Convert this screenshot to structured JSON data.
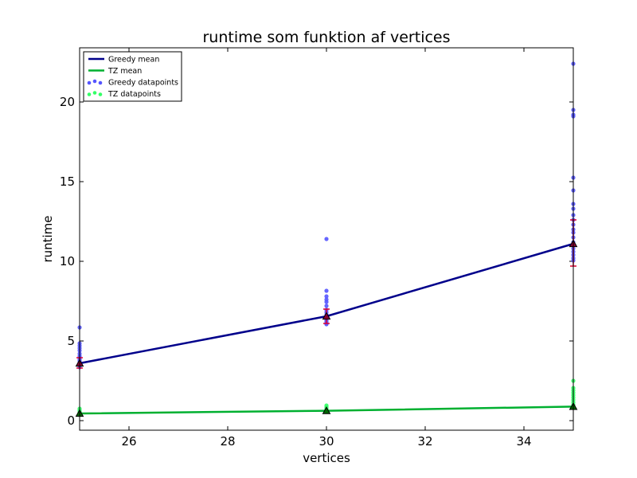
{
  "chart_data": {
    "type": "line",
    "title": "runtime som funktion af vertices",
    "xlabel": "vertices",
    "ylabel": "runtime",
    "xlim": [
      25,
      35
    ],
    "ylim": [
      -0.6,
      23.4
    ],
    "xticks": [
      26,
      28,
      30,
      32,
      34
    ],
    "yticks": [
      0,
      5,
      10,
      15,
      20
    ],
    "legend_position": "top-left",
    "series": [
      {
        "name": "Greedy mean",
        "kind": "line",
        "color": "#00008b",
        "x": [
          25,
          30,
          35
        ],
        "y": [
          3.6,
          6.55,
          11.1
        ]
      },
      {
        "name": "TZ mean",
        "kind": "line",
        "color": "#00b030",
        "x": [
          25,
          30,
          35
        ],
        "y": [
          0.45,
          0.62,
          0.88
        ]
      },
      {
        "name": "Greedy datapoints",
        "kind": "scatter",
        "color": "#5555ff",
        "points": [
          [
            25,
            5.85
          ],
          [
            25,
            4.85
          ],
          [
            25,
            4.7
          ],
          [
            25,
            4.55
          ],
          [
            25,
            4.4
          ],
          [
            25,
            4.2
          ],
          [
            25,
            4.05
          ],
          [
            25,
            3.95
          ],
          [
            25,
            3.85
          ],
          [
            25,
            3.75
          ],
          [
            25,
            3.65
          ],
          [
            25,
            3.55
          ],
          [
            25,
            3.45
          ],
          [
            25,
            3.35
          ],
          [
            30,
            11.4
          ],
          [
            30,
            8.15
          ],
          [
            30,
            7.8
          ],
          [
            30,
            7.6
          ],
          [
            30,
            7.45
          ],
          [
            30,
            7.2
          ],
          [
            30,
            6.95
          ],
          [
            30,
            6.8
          ],
          [
            30,
            6.65
          ],
          [
            30,
            6.5
          ],
          [
            30,
            6.4
          ],
          [
            30,
            6.3
          ],
          [
            30,
            6.2
          ],
          [
            30,
            6.1
          ],
          [
            30,
            6.05
          ],
          [
            35,
            22.4
          ],
          [
            35,
            19.5
          ],
          [
            35,
            19.2
          ],
          [
            35,
            19.1
          ],
          [
            35,
            15.25
          ],
          [
            35,
            14.45
          ],
          [
            35,
            13.6
          ],
          [
            35,
            13.3
          ],
          [
            35,
            12.9
          ],
          [
            35,
            12.6
          ],
          [
            35,
            12.3
          ],
          [
            35,
            12.0
          ],
          [
            35,
            11.8
          ],
          [
            35,
            11.5
          ],
          [
            35,
            11.2
          ],
          [
            35,
            11.0
          ],
          [
            35,
            10.8
          ],
          [
            35,
            10.6
          ],
          [
            35,
            10.4
          ],
          [
            35,
            10.2
          ],
          [
            35,
            10.05
          ]
        ]
      },
      {
        "name": "TZ datapoints",
        "kind": "scatter",
        "color": "#33ff66",
        "points": [
          [
            25,
            0.75
          ],
          [
            25,
            0.65
          ],
          [
            25,
            0.55
          ],
          [
            25,
            0.5
          ],
          [
            25,
            0.45
          ],
          [
            25,
            0.42
          ],
          [
            30,
            0.95
          ],
          [
            30,
            0.85
          ],
          [
            30,
            0.75
          ],
          [
            30,
            0.7
          ],
          [
            30,
            0.65
          ],
          [
            30,
            0.6
          ],
          [
            35,
            2.5
          ],
          [
            35,
            2.05
          ],
          [
            35,
            1.9
          ],
          [
            35,
            1.75
          ],
          [
            35,
            1.6
          ],
          [
            35,
            1.45
          ],
          [
            35,
            1.3
          ],
          [
            35,
            1.15
          ],
          [
            35,
            1.0
          ],
          [
            35,
            0.9
          ],
          [
            35,
            0.8
          ]
        ]
      }
    ],
    "error_bars": {
      "color": "#dd0033",
      "x": [
        25,
        30,
        35
      ],
      "center": [
        3.6,
        6.55,
        11.1
      ],
      "low": [
        3.3,
        6.1,
        9.7
      ],
      "high": [
        3.95,
        7.0,
        12.6
      ]
    },
    "mean_markers": {
      "shape": "triangle",
      "color": "#000000",
      "greedy": {
        "x": [
          25,
          30,
          35
        ],
        "y": [
          3.6,
          6.55,
          11.1
        ],
        "fill": "#880033"
      },
      "tz": {
        "x": [
          25,
          30,
          35
        ],
        "y": [
          0.45,
          0.62,
          0.88
        ],
        "fill": "#006600"
      }
    }
  }
}
